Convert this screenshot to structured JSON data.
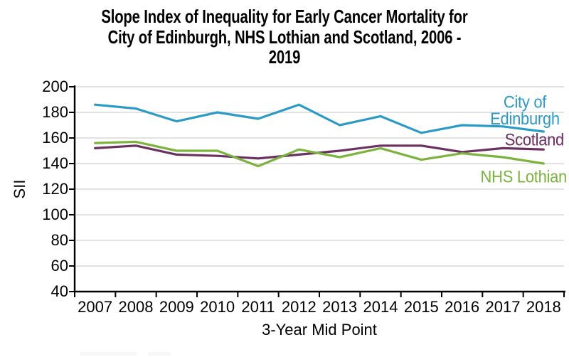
{
  "title": "Slope Index of Inequality for Early Cancer Mortality for City of Edinburgh, NHS Lothian and Scotland, 2006 - 2019",
  "title_lines": [
    "Slope Index of Inequality for Early Cancer Mortality for",
    "City of Edinburgh, NHS Lothian and Scotland, 2006 -",
    "2019"
  ],
  "y_axis": {
    "label": "SII"
  },
  "x_axis": {
    "label": "3-Year Mid Point"
  },
  "colors": {
    "gridline": "#d9d9d9",
    "axis": "#000000",
    "background": "#ffffff"
  },
  "chart_data": {
    "type": "line",
    "title": "Slope Index of Inequality for Early Cancer Mortality for City of Edinburgh, NHS Lothian and Scotland, 2006 - 2019",
    "xlabel": "3-Year Mid Point",
    "ylabel": "SII",
    "ylim": [
      40,
      200
    ],
    "yticks": [
      40,
      60,
      80,
      100,
      120,
      140,
      160,
      180,
      200
    ],
    "grid": true,
    "legend_position": "line-end-labels-right",
    "categories": [
      "2007",
      "2008",
      "2009",
      "2010",
      "2011",
      "2012",
      "2013",
      "2014",
      "2015",
      "2016",
      "2017",
      "2018"
    ],
    "series": [
      {
        "name": "City of Edinburgh",
        "color": "#2a9ac7",
        "values": [
          186,
          183,
          173,
          180,
          175,
          186,
          170,
          177,
          164,
          170,
          169,
          165
        ]
      },
      {
        "name": "Scotland",
        "color": "#6c2f62",
        "values": [
          152,
          154,
          147,
          146,
          144,
          147,
          150,
          154,
          154,
          149,
          152,
          151
        ]
      },
      {
        "name": "NHS Lothian",
        "color": "#7ab43c",
        "values": [
          156,
          157,
          150,
          150,
          138,
          151,
          145,
          152,
          143,
          148,
          145,
          140
        ]
      }
    ]
  }
}
